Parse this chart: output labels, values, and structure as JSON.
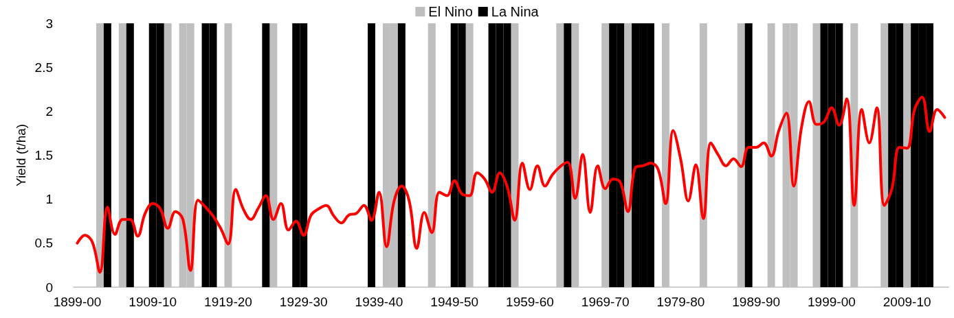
{
  "chart_data": {
    "type": "line",
    "ylabel": "Yield (t/ha)",
    "categories": [
      "1899-00",
      null,
      null,
      null,
      null,
      null,
      null,
      null,
      null,
      null,
      "1909-10",
      null,
      null,
      null,
      null,
      null,
      null,
      null,
      null,
      null,
      "1919-20",
      null,
      null,
      null,
      null,
      null,
      null,
      null,
      null,
      null,
      "1929-30",
      null,
      null,
      null,
      null,
      null,
      null,
      null,
      null,
      null,
      "1939-40",
      null,
      null,
      null,
      null,
      null,
      null,
      null,
      null,
      null,
      "1949-50",
      null,
      null,
      null,
      null,
      null,
      null,
      null,
      null,
      null,
      "1959-60",
      null,
      null,
      null,
      null,
      null,
      null,
      null,
      null,
      null,
      "1969-70",
      null,
      null,
      null,
      null,
      null,
      null,
      null,
      null,
      null,
      "1979-80",
      null,
      null,
      null,
      null,
      null,
      null,
      null,
      null,
      null,
      "1989-90",
      null,
      null,
      null,
      null,
      null,
      null,
      null,
      null,
      null,
      "1999-00",
      null,
      null,
      null,
      null,
      null,
      null,
      null,
      null,
      null,
      "2009-10",
      null,
      null,
      null,
      null,
      null
    ],
    "series": [
      {
        "name": "El Nino",
        "type": "bar",
        "color": "#bfbfbf",
        "values": [
          null,
          null,
          null,
          3,
          null,
          null,
          3,
          null,
          null,
          null,
          null,
          null,
          3,
          null,
          3,
          3,
          null,
          null,
          null,
          null,
          3,
          null,
          null,
          null,
          null,
          null,
          3,
          null,
          null,
          null,
          null,
          null,
          null,
          null,
          null,
          null,
          null,
          null,
          null,
          null,
          null,
          3,
          3,
          null,
          null,
          null,
          null,
          3,
          null,
          null,
          null,
          null,
          3,
          null,
          null,
          null,
          null,
          null,
          3,
          null,
          null,
          null,
          null,
          null,
          3,
          null,
          3,
          null,
          null,
          null,
          3,
          null,
          null,
          3,
          null,
          null,
          null,
          null,
          3,
          null,
          null,
          null,
          null,
          3,
          null,
          null,
          null,
          null,
          3,
          null,
          null,
          null,
          3,
          null,
          3,
          3,
          null,
          null,
          3,
          null,
          null,
          null,
          null,
          3,
          null,
          null,
          null,
          3,
          null,
          null,
          3,
          null,
          null,
          null,
          null,
          null
        ]
      },
      {
        "name": "La Nina",
        "type": "bar",
        "color": "#000000",
        "values": [
          null,
          null,
          null,
          null,
          3,
          null,
          null,
          3,
          null,
          null,
          3,
          3,
          null,
          null,
          null,
          null,
          null,
          3,
          3,
          null,
          null,
          null,
          null,
          null,
          null,
          3,
          null,
          null,
          null,
          3,
          3,
          null,
          null,
          null,
          null,
          null,
          null,
          null,
          null,
          3,
          null,
          null,
          null,
          3,
          null,
          null,
          null,
          null,
          null,
          null,
          3,
          3,
          null,
          null,
          null,
          3,
          3,
          3,
          null,
          null,
          null,
          null,
          null,
          null,
          null,
          3,
          null,
          null,
          null,
          null,
          null,
          3,
          3,
          null,
          3,
          3,
          3,
          null,
          null,
          null,
          null,
          null,
          null,
          null,
          null,
          null,
          null,
          null,
          null,
          3,
          null,
          null,
          null,
          null,
          null,
          null,
          null,
          null,
          null,
          3,
          3,
          3,
          null,
          null,
          null,
          null,
          null,
          null,
          3,
          3,
          null,
          3,
          3,
          3,
          null,
          null
        ]
      },
      {
        "color": "#ff0000",
        "values": [
          0.5,
          0.59,
          0.51,
          0.17,
          0.91,
          0.6,
          0.77,
          0.77,
          0.58,
          0.84,
          0.95,
          0.89,
          0.67,
          0.86,
          0.77,
          0.19,
          0.99,
          0.91,
          0.81,
          0.67,
          0.49,
          1.11,
          0.89,
          0.77,
          0.9,
          1.04,
          0.77,
          0.95,
          0.65,
          0.75,
          0.59,
          0.82,
          0.89,
          0.93,
          0.81,
          0.73,
          0.82,
          0.84,
          0.93,
          0.76,
          1.08,
          0.46,
          0.98,
          1.15,
          0.98,
          0.44,
          0.85,
          0.62,
          1.08,
          1.04,
          1.21,
          1.06,
          1.04,
          1.3,
          1.23,
          1.08,
          1.3,
          1.14,
          0.76,
          1.41,
          1.11,
          1.38,
          1.15,
          1.28,
          1.37,
          1.42,
          1.01,
          1.51,
          0.85,
          1.38,
          1.12,
          1.23,
          1.19,
          0.86,
          1.36,
          1.38,
          1.41,
          1.34,
          0.95,
          1.78,
          1.45,
          0.98,
          1.39,
          0.78,
          1.64,
          1.5,
          1.38,
          1.46,
          1.37,
          1.59,
          1.59,
          1.64,
          1.49,
          1.78,
          1.98,
          1.15,
          1.81,
          2.11,
          1.85,
          1.88,
          2.04,
          1.84,
          2.14,
          0.93,
          2.02,
          1.64,
          2.04,
          0.93,
          1.12,
          1.59,
          1.58,
          2.02,
          2.16,
          1.77,
          2.02,
          1.93
        ]
      }
    ],
    "ylim": [
      0,
      3
    ],
    "yticks": [
      0,
      0.5,
      1,
      1.5,
      2,
      2.5,
      3
    ],
    "grid": false,
    "legend": "top",
    "marker": "none",
    "line_style": "solid"
  }
}
